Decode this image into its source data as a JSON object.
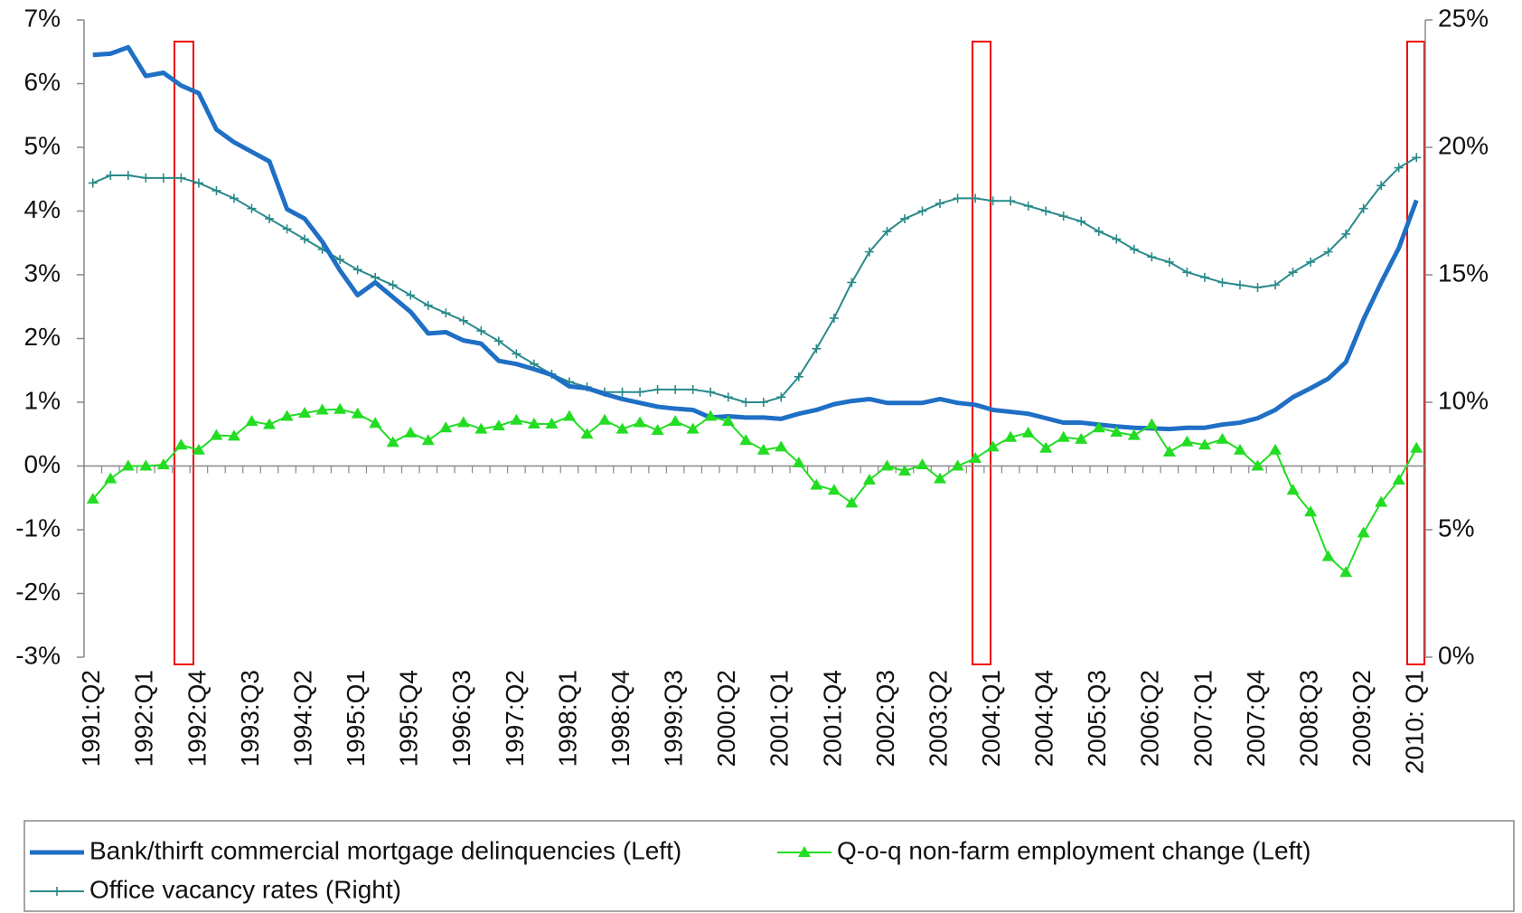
{
  "chart_data": {
    "type": "line",
    "categories": [
      "1991:Q2",
      null,
      null,
      "1992:Q1",
      null,
      null,
      "1992:Q4",
      null,
      null,
      "1993:Q3",
      null,
      null,
      "1994:Q2",
      null,
      null,
      "1995:Q1",
      null,
      null,
      "1995:Q4",
      null,
      null,
      "1996:Q3",
      null,
      null,
      "1997:Q2",
      null,
      null,
      "1998:Q1",
      null,
      null,
      "1998:Q4",
      null,
      null,
      "1999:Q3",
      null,
      null,
      "2000:Q2",
      null,
      null,
      "2001:Q1",
      null,
      null,
      "2001:Q4",
      null,
      null,
      "2002:Q3",
      null,
      null,
      "2003:Q2",
      null,
      null,
      "2004:Q1",
      null,
      null,
      "2004:Q4",
      null,
      null,
      "2005:Q3",
      null,
      null,
      "2006:Q2",
      null,
      null,
      "2007:Q1",
      null,
      null,
      "2007:Q4",
      null,
      null,
      "2008:Q3",
      null,
      null,
      "2009:Q2",
      null,
      null,
      "2010: Q1"
    ],
    "series": [
      {
        "name": "Bank/thirft commercial mortgage delinquencies (Left)",
        "color": "#1f6fc5",
        "marker": "none",
        "values": [
          6.45,
          6.47,
          6.57,
          6.12,
          6.17,
          5.97,
          5.85,
          5.28,
          5.08,
          4.93,
          4.78,
          4.03,
          3.88,
          3.52,
          3.07,
          2.68,
          2.88,
          2.65,
          2.42,
          2.08,
          2.1,
          1.97,
          1.92,
          1.65,
          1.6,
          1.52,
          1.43,
          1.25,
          1.22,
          1.13,
          1.05,
          0.99,
          0.93,
          0.9,
          0.88,
          0.76,
          0.78,
          0.76,
          0.76,
          0.74,
          0.82,
          0.88,
          0.97,
          1.02,
          1.05,
          0.99,
          0.99,
          0.99,
          1.05,
          0.99,
          0.96,
          0.88,
          0.85,
          0.82,
          0.75,
          0.68,
          0.68,
          0.65,
          0.62,
          0.6,
          0.59,
          0.58,
          0.6,
          0.6,
          0.65,
          0.68,
          0.75,
          0.88,
          1.08,
          1.22,
          1.37,
          1.63,
          2.3,
          2.88,
          3.42,
          4.17
        ]
      },
      {
        "name": "Q-o-q non-farm employment change (Left)",
        "color": "#22dd22",
        "marker": "triangle",
        "values": [
          -0.52,
          -0.2,
          0.0,
          0.0,
          0.02,
          0.33,
          0.25,
          0.48,
          0.47,
          0.7,
          0.65,
          0.78,
          0.83,
          0.88,
          0.89,
          0.82,
          0.67,
          0.37,
          0.52,
          0.4,
          0.6,
          0.68,
          0.58,
          0.63,
          0.72,
          0.66,
          0.66,
          0.78,
          0.5,
          0.72,
          0.58,
          0.68,
          0.56,
          0.7,
          0.58,
          0.78,
          0.7,
          0.4,
          0.25,
          0.3,
          0.05,
          -0.3,
          -0.38,
          -0.58,
          -0.22,
          0.0,
          -0.08,
          0.02,
          -0.2,
          0.0,
          0.12,
          0.3,
          0.45,
          0.52,
          0.28,
          0.45,
          0.42,
          0.6,
          0.53,
          0.48,
          0.65,
          0.22,
          0.38,
          0.33,
          0.42,
          0.25,
          0.0,
          0.25,
          -0.38,
          -0.72,
          -1.42,
          -1.67,
          -1.05,
          -0.57,
          -0.22,
          0.28
        ]
      },
      {
        "name": "Office vacancy rates (Right)",
        "color": "#2a8a8a",
        "marker": "plus",
        "axis": "y2",
        "values": [
          18.6,
          18.9,
          18.9,
          18.8,
          18.8,
          18.8,
          18.6,
          18.3,
          18.0,
          17.6,
          17.2,
          16.8,
          16.4,
          16.0,
          15.6,
          15.2,
          14.9,
          14.6,
          14.2,
          13.8,
          13.5,
          13.2,
          12.8,
          12.4,
          11.9,
          11.5,
          11.1,
          10.8,
          10.6,
          10.4,
          10.4,
          10.4,
          10.5,
          10.5,
          10.5,
          10.4,
          10.2,
          10.0,
          10.0,
          10.2,
          11.0,
          12.1,
          13.3,
          14.7,
          15.9,
          16.7,
          17.2,
          17.5,
          17.8,
          18.0,
          18.0,
          17.9,
          17.9,
          17.7,
          17.5,
          17.3,
          17.1,
          16.7,
          16.4,
          16.0,
          15.7,
          15.5,
          15.1,
          14.9,
          14.7,
          14.6,
          14.5,
          14.6,
          15.1,
          15.5,
          15.9,
          16.6,
          17.6,
          18.5,
          19.2,
          19.6
        ]
      }
    ],
    "ylim": [
      -3,
      7
    ],
    "yticks": [
      {
        "value": -3,
        "label": "-3%"
      },
      {
        "value": -2,
        "label": "-2%"
      },
      {
        "value": -1,
        "label": "-1%"
      },
      {
        "value": 0,
        "label": "0%"
      },
      {
        "value": 1,
        "label": "1%"
      },
      {
        "value": 2,
        "label": "2%"
      },
      {
        "value": 3,
        "label": "3%"
      },
      {
        "value": 4,
        "label": "4%"
      },
      {
        "value": 5,
        "label": "5%"
      },
      {
        "value": 6,
        "label": "6%"
      },
      {
        "value": 7,
        "label": "7%"
      }
    ],
    "y2lim": [
      0,
      25
    ],
    "y2ticks": [
      {
        "value": 0,
        "label": "0%"
      },
      {
        "value": 5,
        "label": "5%"
      },
      {
        "value": 10,
        "label": "10%"
      },
      {
        "value": 15,
        "label": "15%"
      },
      {
        "value": 20,
        "label": "20%"
      },
      {
        "value": 25,
        "label": "25%"
      }
    ],
    "grid": false
  }
}
